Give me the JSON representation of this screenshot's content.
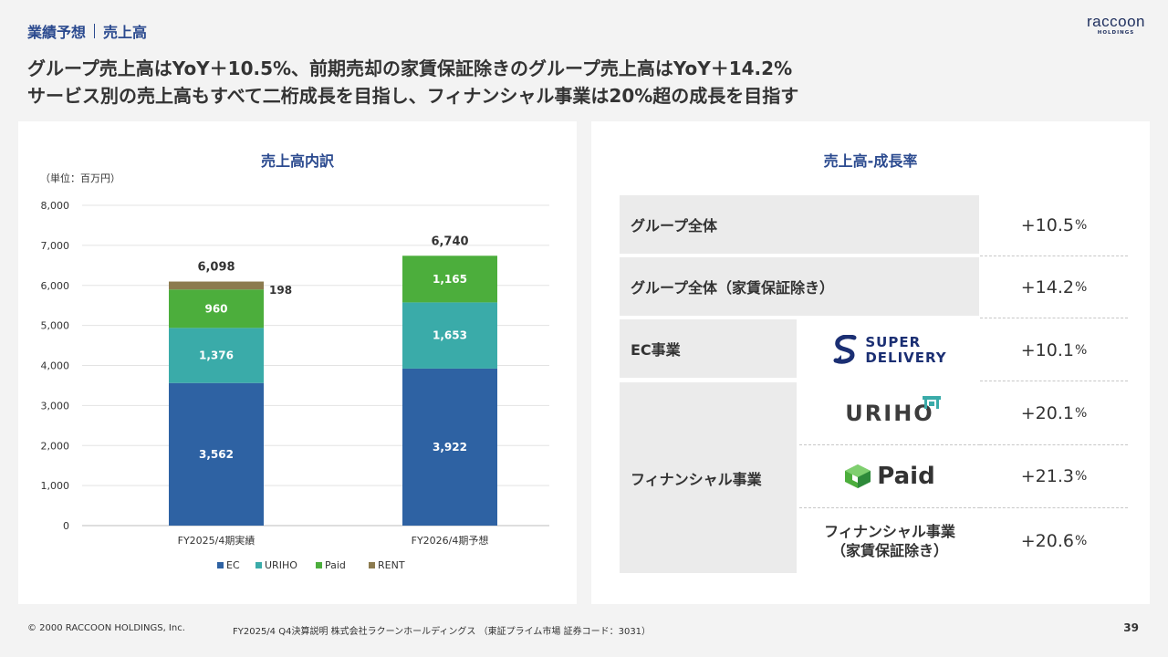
{
  "header": {
    "section": "業績予想",
    "subsection": "売上高",
    "logo_text": "raccoon",
    "logo_sub": "HOLDINGS"
  },
  "headline": {
    "line1": "グループ売上高はYoY＋10.5%、前期売却の家賃保証除きのグループ売上高はYoY＋14.2%",
    "line2": "サービス別の売上高もすべて二桁成長を目指し、フィナンシャル事業は20%超の成長を目指す"
  },
  "left_panel": {
    "title": "売上高内訳",
    "unit": "（単位：百万円）"
  },
  "chart_data": {
    "type": "bar",
    "stacked": true,
    "categories": [
      "FY2025/4期実績",
      "FY2026/4期予想"
    ],
    "series": [
      {
        "name": "EC",
        "values": [
          3562,
          3922
        ],
        "color": "#2e62a3"
      },
      {
        "name": "URIHO",
        "values": [
          1376,
          1653
        ],
        "color": "#3aaba9"
      },
      {
        "name": "Paid",
        "values": [
          960,
          1165
        ],
        "color": "#4cae3c"
      },
      {
        "name": "RENT",
        "values": [
          198,
          0
        ],
        "color": "#8c7b4f"
      }
    ],
    "totals": [
      6098,
      6740
    ],
    "data_labels": [
      [
        "3,562",
        "1,376",
        "960",
        "198"
      ],
      [
        "3,922",
        "1,653",
        "1,165",
        ""
      ]
    ],
    "total_labels": [
      "6,098",
      "6,740"
    ],
    "yticks": [
      0,
      1000,
      2000,
      3000,
      4000,
      5000,
      6000,
      7000,
      8000
    ],
    "ytick_labels": [
      "0",
      "1,000",
      "2,000",
      "3,000",
      "4,000",
      "5,000",
      "6,000",
      "7,000",
      "8,000"
    ],
    "ylim": [
      0,
      8000
    ],
    "grid": true,
    "legend": "bottom"
  },
  "right_panel": {
    "title": "売上高-成長率",
    "rows": [
      {
        "label": "グループ全体",
        "rate": "+10.5",
        "pct": "%"
      },
      {
        "label": "グループ全体（家賃保証除き）",
        "rate": "+14.2",
        "pct": "%"
      },
      {
        "label": "EC事業",
        "brand": "SUPER DELIVERY",
        "brand_line1": "SUPER",
        "brand_line2": "DELIVERY",
        "rate": "+10.1",
        "pct": "%"
      },
      {
        "label": "フィナンシャル事業",
        "brand": "URIHO",
        "rate": "+20.1",
        "pct": "%"
      },
      {
        "brand": "Paid",
        "rate": "+21.3",
        "pct": "%"
      },
      {
        "brand_line1": "フィナンシャル事業",
        "brand_line2": "（家賃保証除き）",
        "rate": "+20.6",
        "pct": "%"
      }
    ]
  },
  "footer": {
    "copyright": "© 2000 RACCOON HOLDINGS, Inc.",
    "doc": "FY2025/4 Q4決算説明 株式会社ラクーンホールディングス （東証プライム市場 証券コード：3031）",
    "page": "39"
  }
}
